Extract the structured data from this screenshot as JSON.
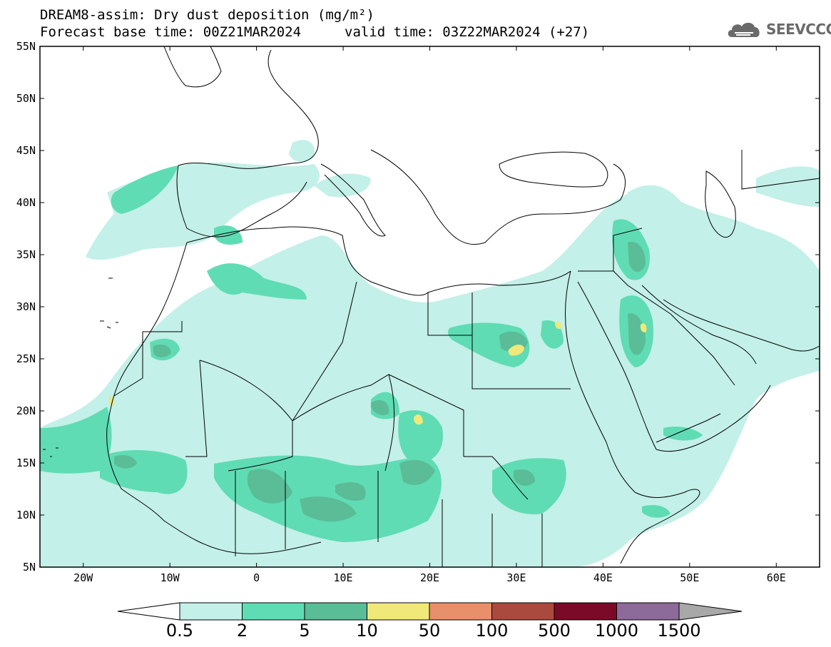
{
  "header": {
    "title": "DREAM8-assim: Dry dust deposition (mg/m²)",
    "base_time": "Forecast base time: 00Z21MAR2024",
    "valid_time": "valid time: 03Z22MAR2024 (+27)"
  },
  "logo": {
    "text": "SEEVCCC",
    "icon": "cloud-logo-icon"
  },
  "map": {
    "lat_labels": [
      "55N",
      "50N",
      "45N",
      "40N",
      "35N",
      "30N",
      "25N",
      "20N",
      "15N",
      "10N",
      "5N"
    ],
    "lat_values": [
      55,
      50,
      45,
      40,
      35,
      30,
      25,
      20,
      15,
      10,
      5
    ],
    "lon_labels": [
      "20W",
      "10W",
      "0",
      "10E",
      "20E",
      "30E",
      "40E",
      "50E",
      "60E"
    ],
    "lon_values": [
      -20,
      -10,
      0,
      10,
      20,
      30,
      40,
      50,
      60
    ],
    "lon_range": [
      -25,
      65
    ],
    "lat_range": [
      5,
      55
    ]
  },
  "colorbar": {
    "labels": [
      "0.5",
      "2",
      "5",
      "10",
      "50",
      "100",
      "500",
      "1000",
      "1500"
    ],
    "colors": [
      "#c3f0e8",
      "#5fdcb4",
      "#5bbc98",
      "#f0e878",
      "#e8906a",
      "#aa4a3e",
      "#7a0a28",
      "#8c6a9a",
      "#a8a8a8"
    ]
  },
  "colors": {
    "level_0_5": "#c3f0e8",
    "level_2": "#5fdcb4",
    "level_5": "#5bbc98",
    "level_10": "#f0e878",
    "coast": "#000000"
  }
}
